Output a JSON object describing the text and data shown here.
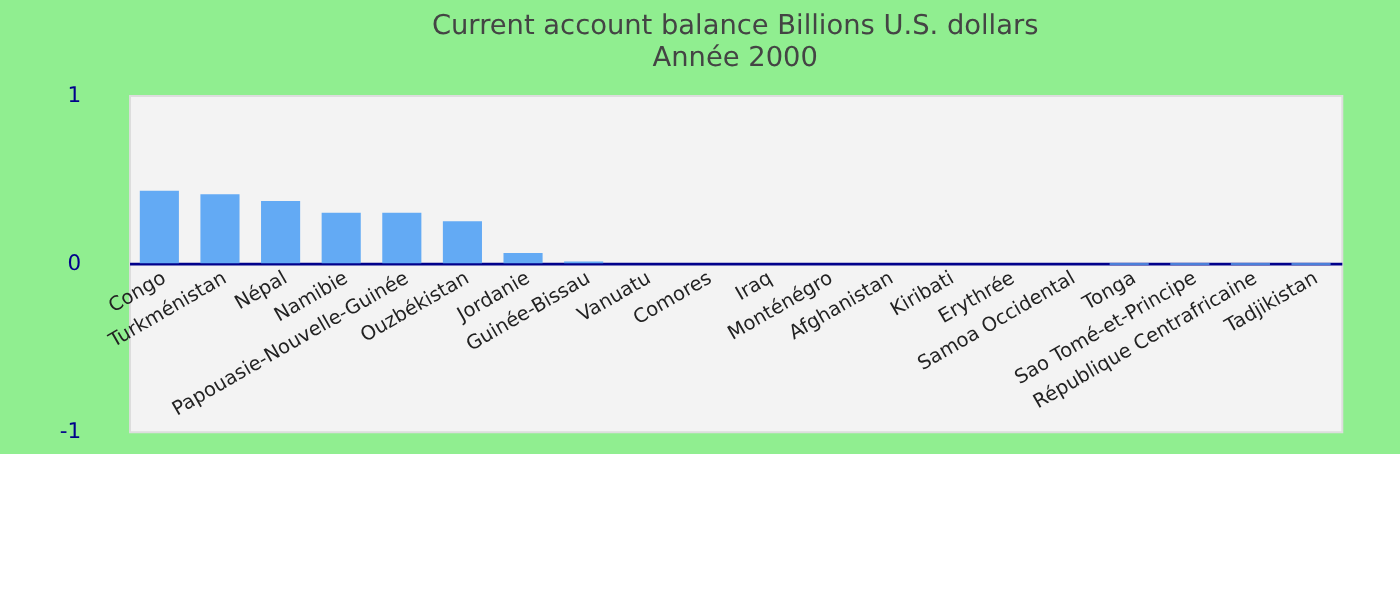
{
  "chart_data": {
    "type": "bar",
    "title": "Current account balance Billions U.S. dollars",
    "subtitle": "Année 2000",
    "categories": [
      "Congo",
      "Turkménistan",
      "Népal",
      "Namibie",
      "Papouasie-Nouvelle-Guinée",
      "Ouzbékistan",
      "Jordanie",
      "Guinée-Bissau",
      "Vanuatu",
      "Comores",
      "Iraq",
      "Monténégro",
      "Afghanistan",
      "Kiribati",
      "Erythrée",
      "Samoa Occidental",
      "Tonga",
      "Sao Tomé-et-Principe",
      "République Centrafricaine",
      "Tadjikistan"
    ],
    "values": [
      0.43,
      0.41,
      0.37,
      0.3,
      0.3,
      0.25,
      0.06,
      0.01,
      0,
      0,
      0,
      0,
      0,
      0,
      0,
      0,
      -0.01,
      -0.01,
      -0.01,
      -0.01
    ],
    "color": "#63aaf4",
    "ylim": [
      -1,
      1
    ],
    "yticks": [
      -1,
      0,
      1
    ],
    "grid": false
  }
}
